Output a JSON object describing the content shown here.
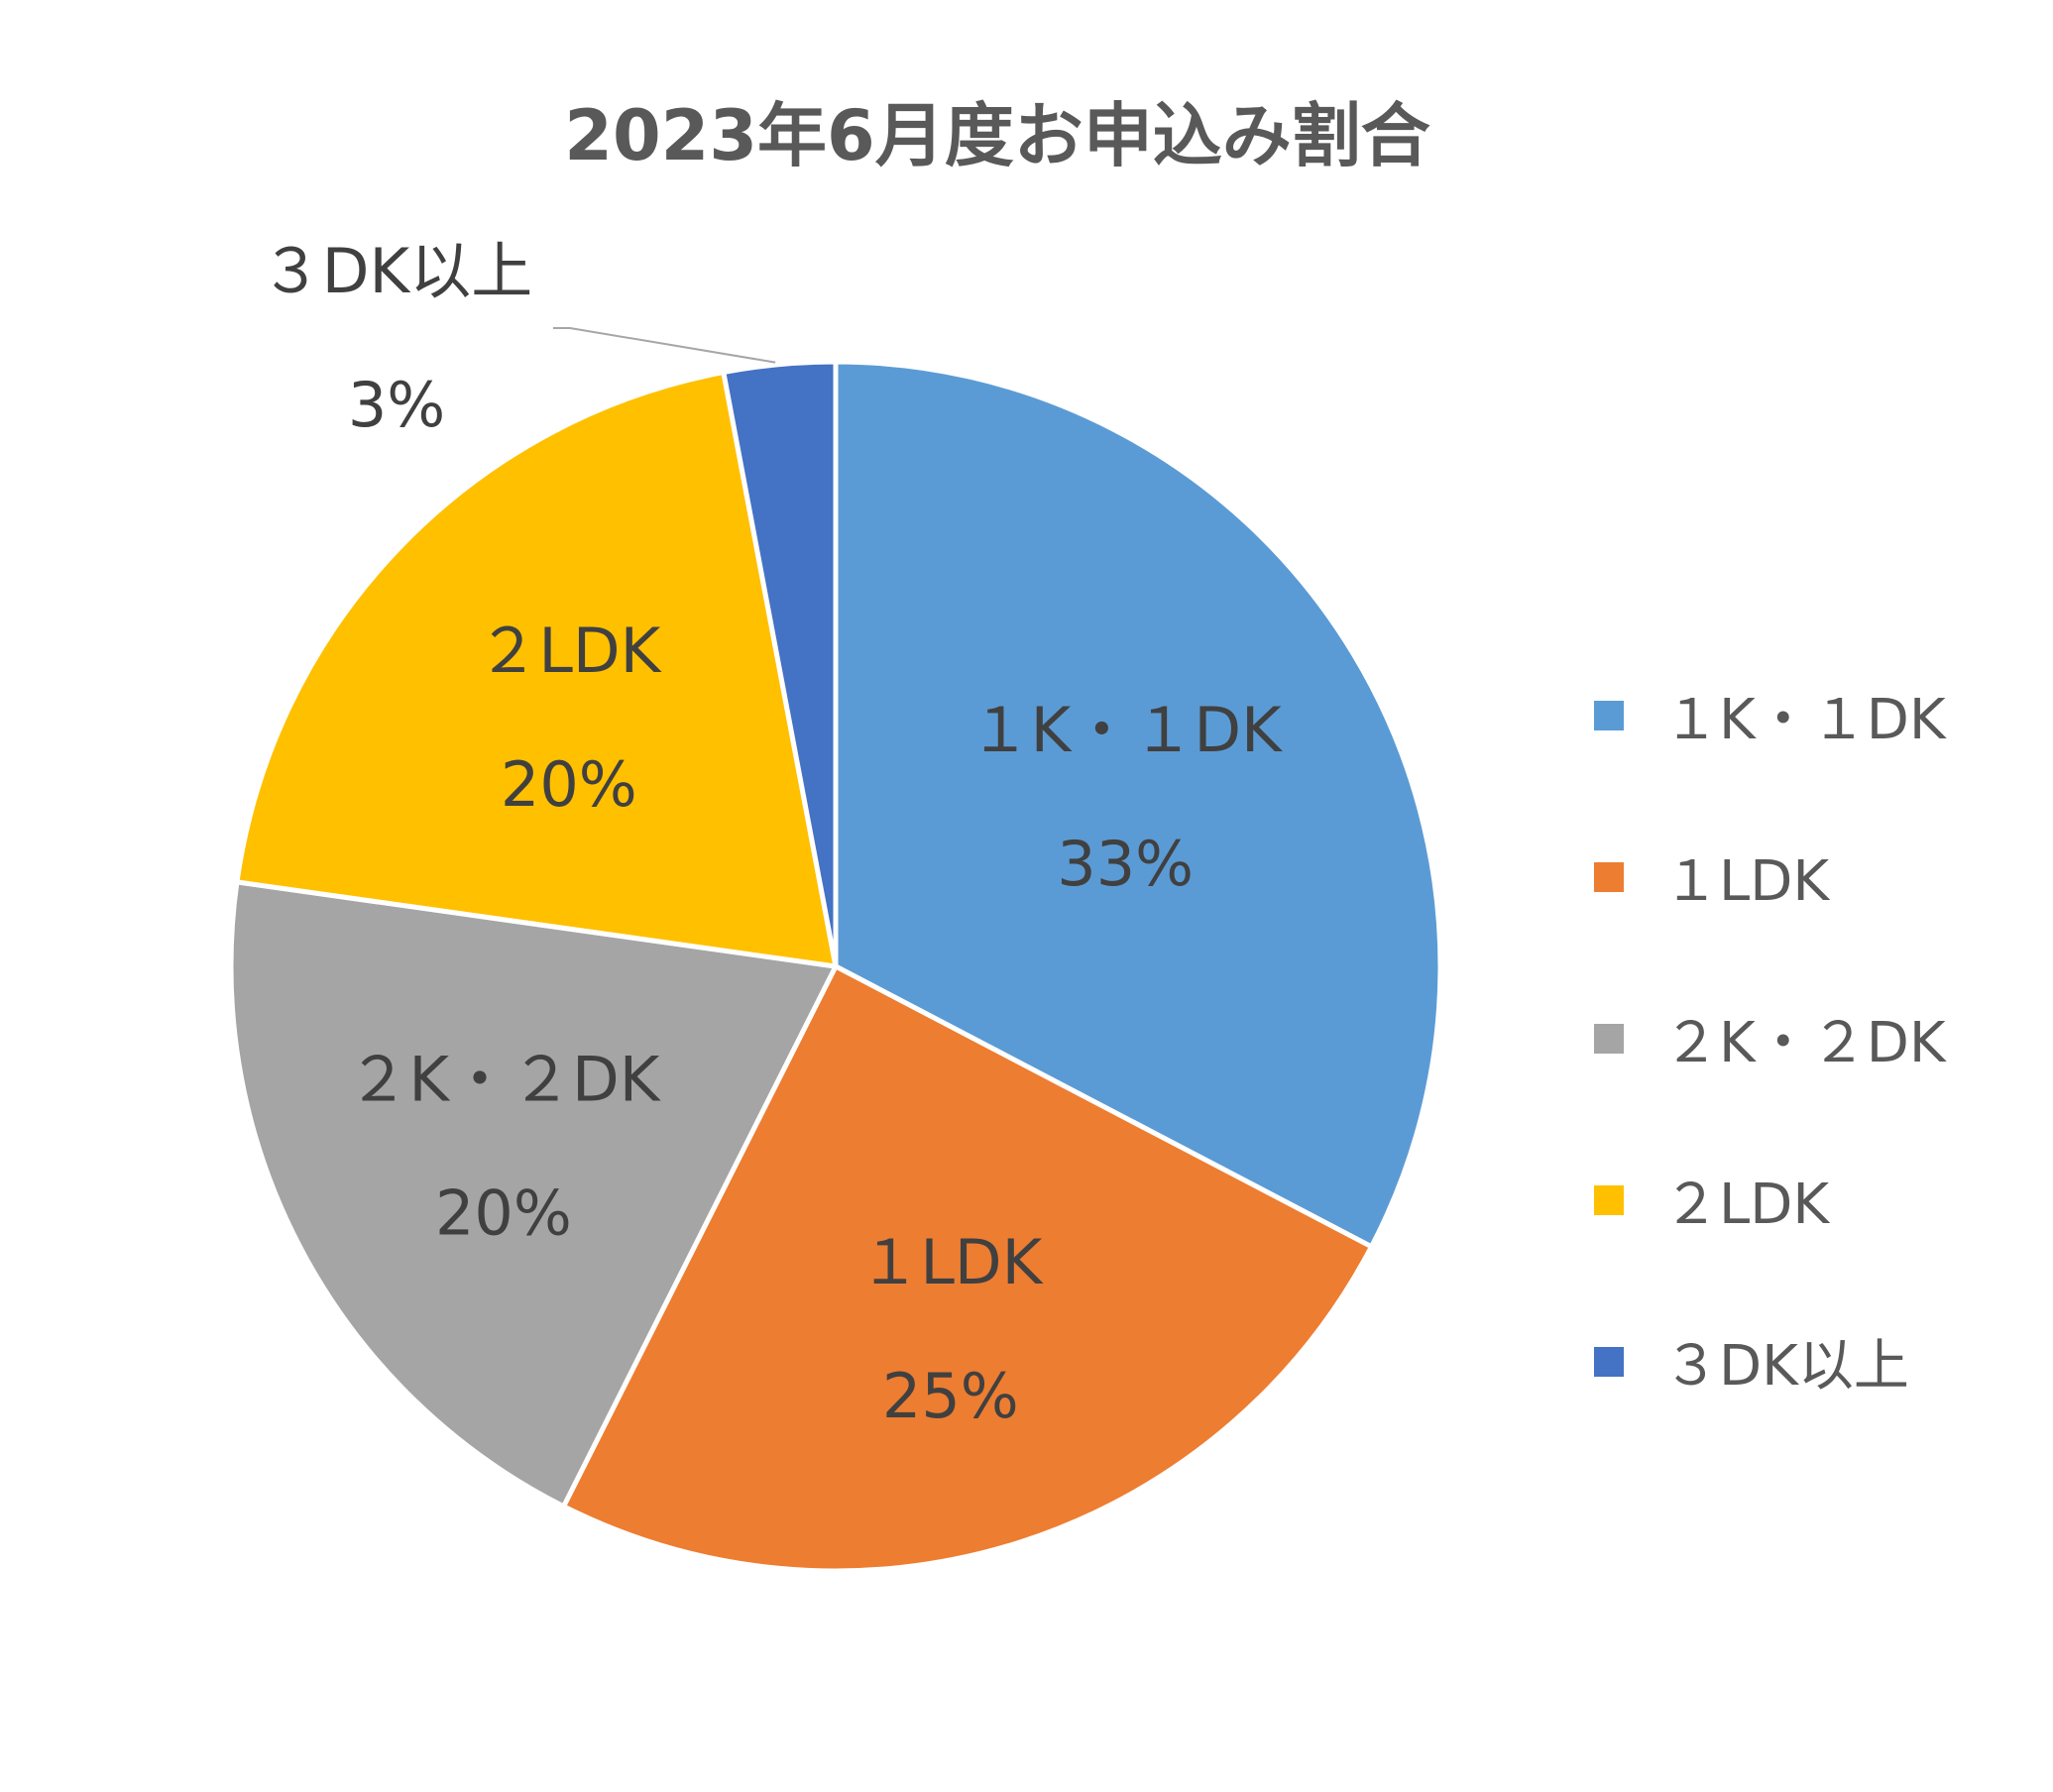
{
  "chart_data": {
    "type": "pie",
    "title": "2023年6月度お申込み割合",
    "start_angle_deg": 0,
    "direction": "clockwise",
    "legend_position": "right",
    "slices": [
      {
        "label": "１K・１DK",
        "value": 33,
        "value_label": "33%",
        "color": "#5B9BD5"
      },
      {
        "label": "１LDK",
        "value": 25,
        "value_label": "25%",
        "color": "#ED7D31"
      },
      {
        "label": "２K・２DK",
        "value": 20,
        "value_label": "20%",
        "color": "#A5A5A5"
      },
      {
        "label": "２LDK",
        "value": 20,
        "value_label": "20%",
        "color": "#FFC000"
      },
      {
        "label": "３DK以上",
        "value": 3,
        "value_label": "3%",
        "color": "#4472C4"
      }
    ]
  }
}
